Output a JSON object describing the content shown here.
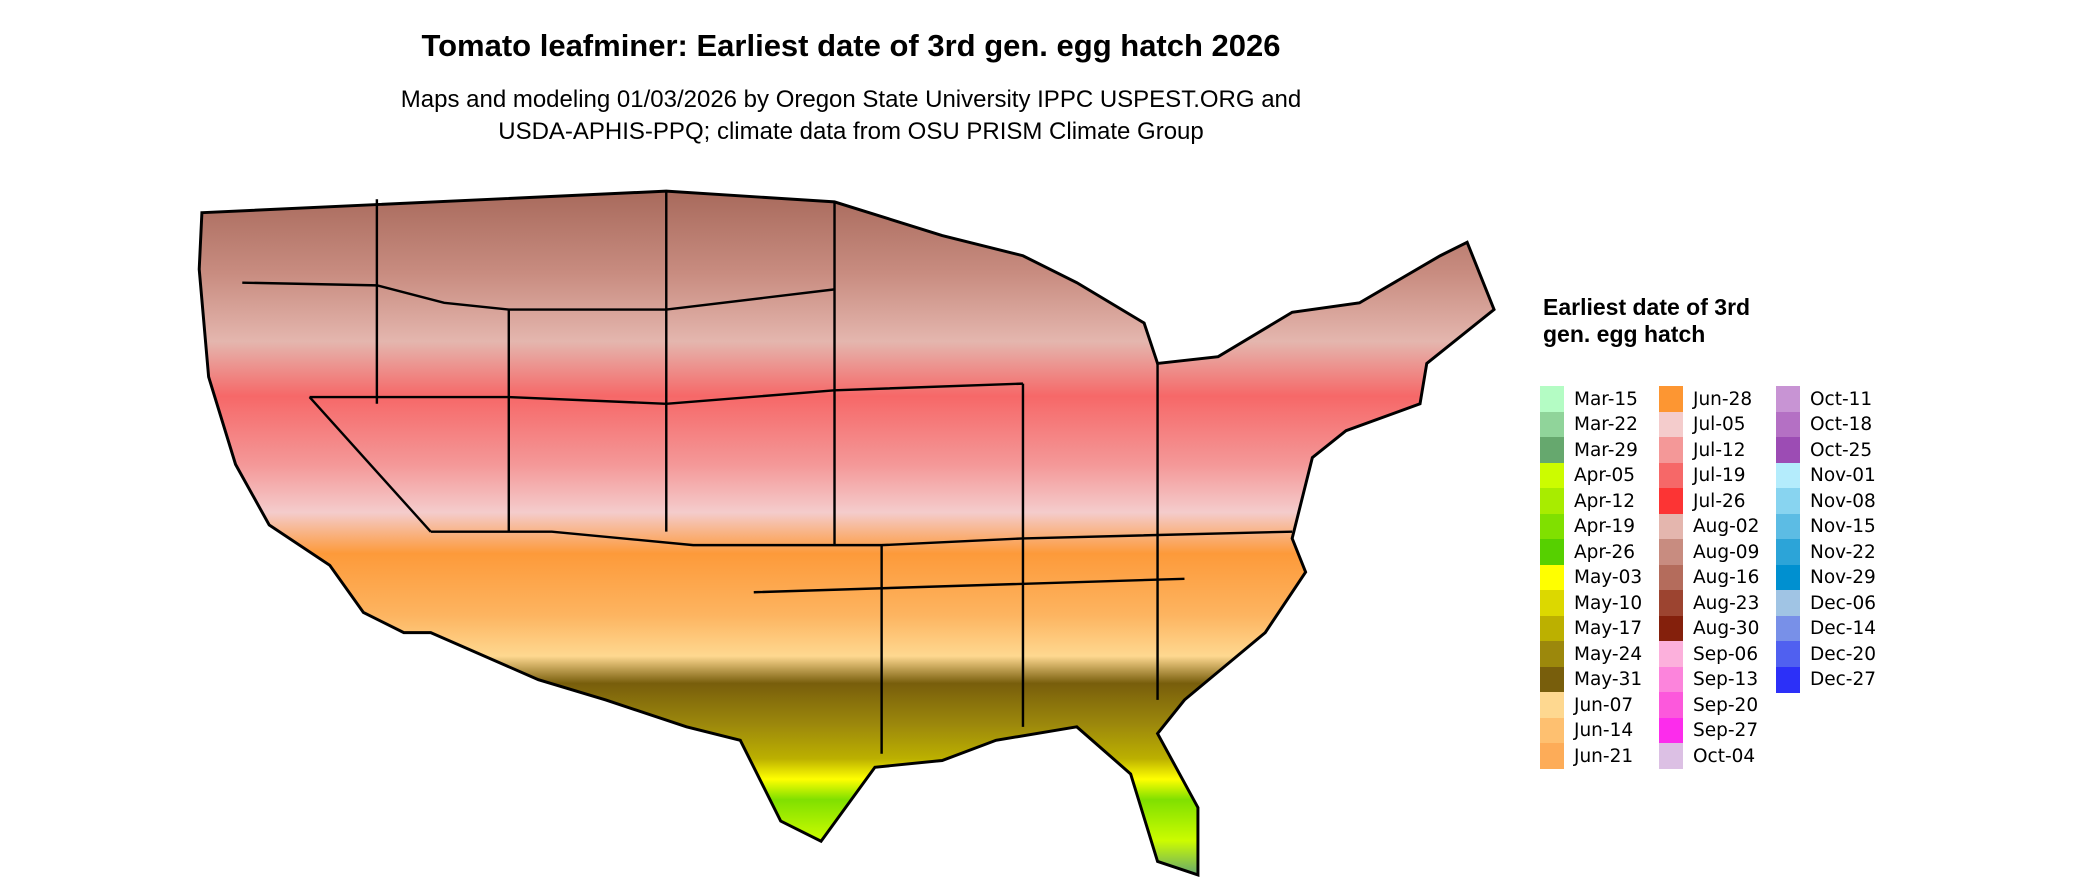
{
  "title": "Tomato leafminer: Earliest date of 3rd gen. egg hatch 2026",
  "subtitle_lines": [
    "Maps and modeling 01/03/2026 by Oregon State University IPPC USPEST.ORG and",
    "USDA-APHIS-PPQ; climate data from OSU PRISM Climate Group"
  ],
  "chart_data": {
    "type": "heatmap",
    "title": "Tomato leafminer: Earliest date of 3rd gen. egg hatch 2026",
    "region": "Contiguous United States",
    "legend": {
      "title": "Earliest date of 3rd gen. egg hatch",
      "placement": "right",
      "entries": [
        {
          "label": "Mar-15",
          "color": "#b4fcc4"
        },
        {
          "label": "Mar-22",
          "color": "#90d49a"
        },
        {
          "label": "Mar-29",
          "color": "#66a86e"
        },
        {
          "label": "Apr-05",
          "color": "#ccfc00"
        },
        {
          "label": "Apr-12",
          "color": "#a8ec00"
        },
        {
          "label": "Apr-19",
          "color": "#80e000"
        },
        {
          "label": "Apr-26",
          "color": "#56d000"
        },
        {
          "label": "May-03",
          "color": "#ffff00"
        },
        {
          "label": "May-10",
          "color": "#dcd800"
        },
        {
          "label": "May-17",
          "color": "#bcb000"
        },
        {
          "label": "May-24",
          "color": "#9c880c"
        },
        {
          "label": "May-31",
          "color": "#785e0c"
        },
        {
          "label": "Jun-07",
          "color": "#fed890"
        },
        {
          "label": "Jun-14",
          "color": "#fec070"
        },
        {
          "label": "Jun-21",
          "color": "#fdac58"
        },
        {
          "label": "Jun-28",
          "color": "#fd9632"
        },
        {
          "label": "Jul-05",
          "color": "#f4cccc"
        },
        {
          "label": "Jul-12",
          "color": "#f49898"
        },
        {
          "label": "Jul-19",
          "color": "#f66868"
        },
        {
          "label": "Jul-26",
          "color": "#fc3434"
        },
        {
          "label": "Aug-02",
          "color": "#e4b6ae"
        },
        {
          "label": "Aug-09",
          "color": "#c88c80"
        },
        {
          "label": "Aug-16",
          "color": "#b46c5c"
        },
        {
          "label": "Aug-23",
          "color": "#9c4430"
        },
        {
          "label": "Aug-30",
          "color": "#84200c"
        },
        {
          "label": "Sep-06",
          "color": "#fcb0dc"
        },
        {
          "label": "Sep-13",
          "color": "#fc84dc"
        },
        {
          "label": "Sep-20",
          "color": "#fc58dc"
        },
        {
          "label": "Sep-27",
          "color": "#fc2cec"
        },
        {
          "label": "Oct-04",
          "color": "#dcc0e4"
        },
        {
          "label": "Oct-11",
          "color": "#c894d4"
        },
        {
          "label": "Oct-18",
          "color": "#b470c4"
        },
        {
          "label": "Oct-25",
          "color": "#9c4cb4"
        },
        {
          "label": "Nov-01",
          "color": "#b4ecfc"
        },
        {
          "label": "Nov-08",
          "color": "#88d4f0"
        },
        {
          "label": "Nov-15",
          "color": "#5cbce4"
        },
        {
          "label": "Nov-22",
          "color": "#2ca4d8"
        },
        {
          "label": "Nov-29",
          "color": "#0090d0"
        },
        {
          "label": "Dec-06",
          "color": "#a0c4e4"
        },
        {
          "label": "Dec-14",
          "color": "#7890e8"
        },
        {
          "label": "Dec-20",
          "color": "#5060f0"
        },
        {
          "label": "Dec-27",
          "color": "#2c30f8"
        }
      ]
    }
  }
}
